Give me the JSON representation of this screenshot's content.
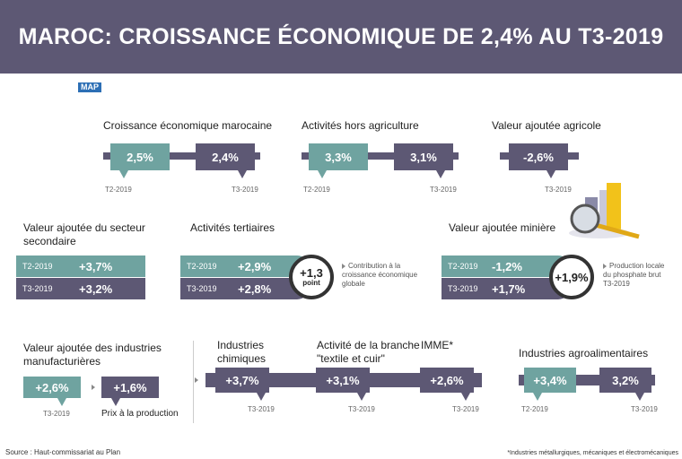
{
  "title": "MAROC: CROISSANCE ÉCONOMIQUE DE 2,4% AU T3-2019",
  "logo": "MAP",
  "colors": {
    "dark": "#5d5874",
    "teal": "#6fa3a0",
    "header": "#5d5874"
  },
  "icons": [
    "magnifier-chart-icon"
  ],
  "source": "Source : Haut-commissariat au Plan",
  "footnote": "*Industries métallurgiques, mécaniques et électromécaniques",
  "chart_data": [
    {
      "type": "bar",
      "title": "Croissance économique marocaine",
      "categories": [
        "T2-2019",
        "T3-2019"
      ],
      "labels": [
        "2,5%",
        "2,4%"
      ],
      "values": [
        2.5,
        2.4
      ]
    },
    {
      "type": "bar",
      "title": "Activités hors agriculture",
      "categories": [
        "T2-2019",
        "T3-2019"
      ],
      "labels": [
        "3,3%",
        "3,1%"
      ],
      "values": [
        3.3,
        3.1
      ]
    },
    {
      "type": "bar",
      "title": "Valeur ajoutée agricole",
      "categories": [
        "T3-2019"
      ],
      "labels": [
        "-2,6%"
      ],
      "values": [
        -2.6
      ]
    },
    {
      "type": "table",
      "title": "Valeur ajoutée du secteur secondaire",
      "categories": [
        "T2-2019",
        "T3-2019"
      ],
      "labels": [
        "+3,7%",
        "+3,2%"
      ],
      "values": [
        3.7,
        3.2
      ]
    },
    {
      "type": "table",
      "title": "Activités tertiaires",
      "categories": [
        "T2-2019",
        "T3-2019"
      ],
      "labels": [
        "+2,9%",
        "+2,8%"
      ],
      "values": [
        2.9,
        2.8
      ],
      "contribution": {
        "value": "+1,3",
        "unit": "point",
        "note": "Contribution à la croissance économique globale"
      }
    },
    {
      "type": "table",
      "title": "Valeur ajoutée minière",
      "categories": [
        "T2-2019",
        "T3-2019"
      ],
      "labels": [
        "-1,2%",
        "+1,7%"
      ],
      "values": [
        -1.2,
        1.7
      ],
      "phosphate": {
        "value": "+1,9%",
        "note": "Production locale du phosphate brut T3-2019"
      }
    },
    {
      "type": "bar",
      "title": "Valeur ajoutée des industries manufacturières",
      "categories": [
        "T3-2019",
        "Prix à la production"
      ],
      "labels": [
        "+2,6%",
        "+1,6%"
      ],
      "values": [
        2.6,
        1.6
      ]
    },
    {
      "type": "bar",
      "title": "Industries manufacturières T3-2019",
      "categories": [
        "Industries chimiques",
        "Activité de la branche \"textile et cuir\"",
        "IMME*"
      ],
      "labels": [
        "+3,7%",
        "+3,1%",
        "+2,6%"
      ],
      "values": [
        3.7,
        3.1,
        2.6
      ],
      "period": "T3-2019"
    },
    {
      "type": "bar",
      "title": "Industries agroalimentaires",
      "categories": [
        "T2-2019",
        "T3-2019"
      ],
      "labels": [
        "+3,4%",
        "3,2%"
      ],
      "values": [
        3.4,
        3.2
      ]
    }
  ]
}
